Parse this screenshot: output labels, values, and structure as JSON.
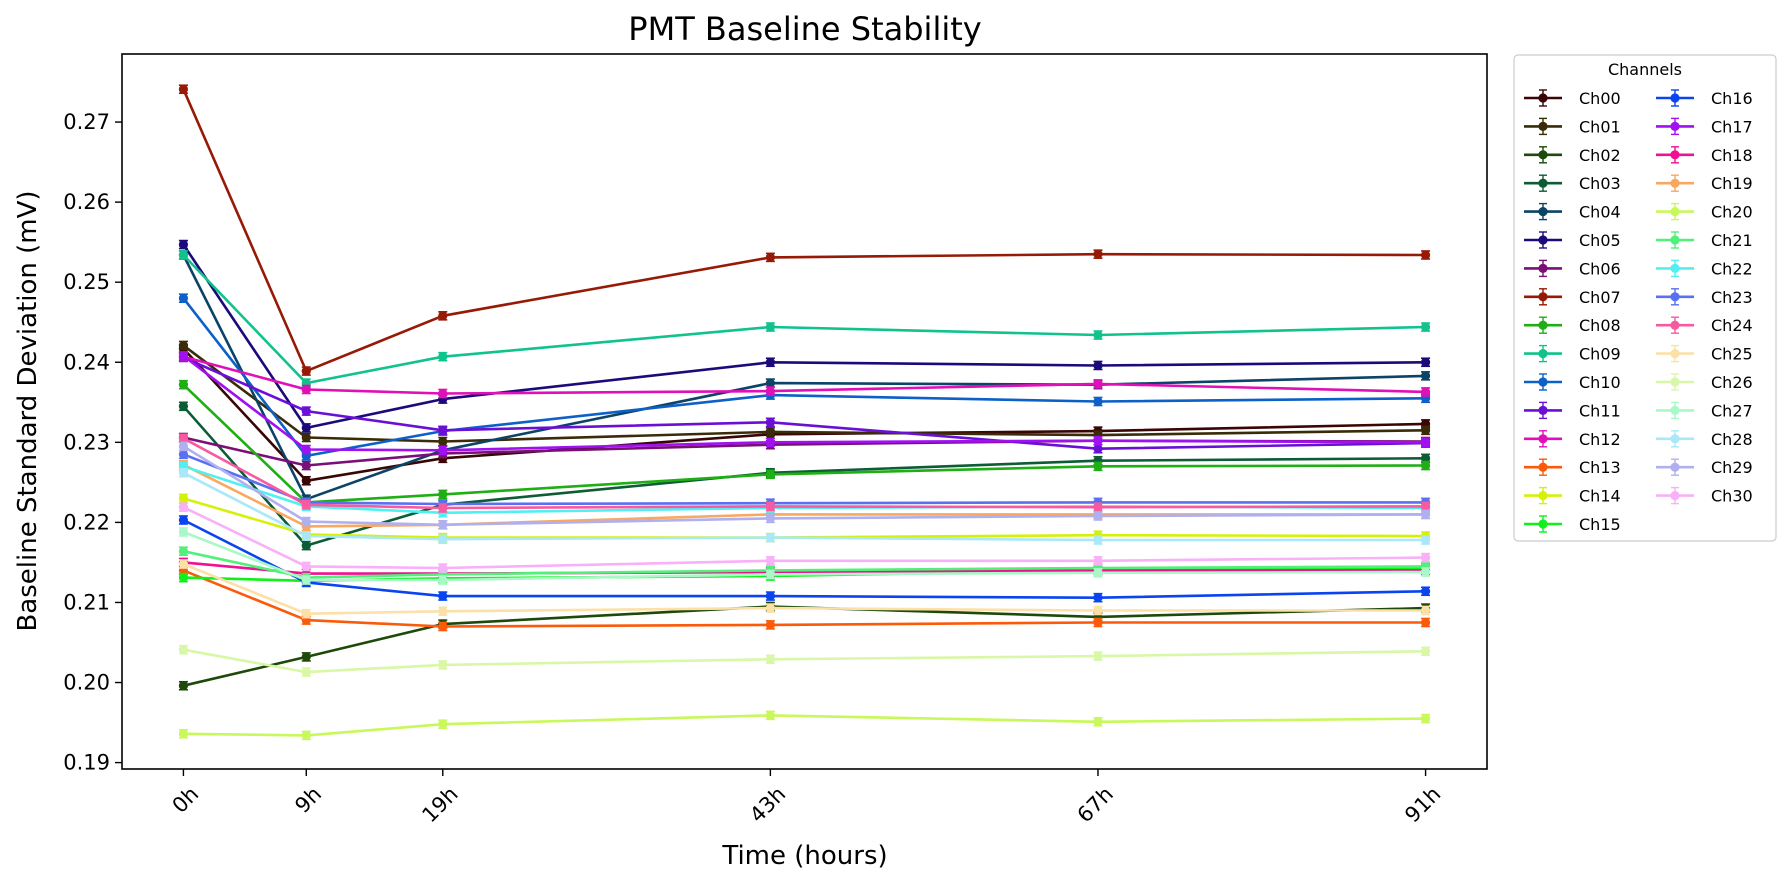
{
  "chart_data": {
    "type": "line",
    "title": "PMT Baseline Stability",
    "xlabel": "Time (hours)",
    "ylabel": "Baseline Standard Deviation (mV)",
    "x": [
      0,
      9,
      19,
      43,
      67,
      91
    ],
    "x_tick_labels": [
      "0h",
      "9h",
      "19h",
      "43h",
      "67h",
      "91h"
    ],
    "xlim": [
      -4.5,
      95.5
    ],
    "ylim": [
      0.1892,
      0.2785
    ],
    "y_ticks": [
      0.19,
      0.2,
      0.21,
      0.22,
      0.23,
      0.24,
      0.25,
      0.26,
      0.27
    ],
    "y_tick_labels": [
      "0.19",
      "0.20",
      "0.21",
      "0.22",
      "0.23",
      "0.24",
      "0.25",
      "0.26",
      "0.27"
    ],
    "grid": false,
    "legend": {
      "title": "Channels",
      "placement": "outside-top-right",
      "columns": 2
    },
    "series": [
      {
        "name": "Ch00",
        "color": "#3a0505",
        "values": [
          0.2417,
          0.2252,
          0.228,
          0.231,
          0.2314,
          0.2323
        ]
      },
      {
        "name": "Ch01",
        "color": "#3a2c08",
        "values": [
          0.2421,
          0.2306,
          0.2301,
          0.2313,
          0.2309,
          0.2315
        ]
      },
      {
        "name": "Ch02",
        "color": "#1d4a0a",
        "values": [
          0.1996,
          0.2032,
          0.2073,
          0.2095,
          0.2082,
          0.2093
        ]
      },
      {
        "name": "Ch03",
        "color": "#0c5c36",
        "values": [
          0.2345,
          0.2171,
          0.2222,
          0.2262,
          0.2277,
          0.228
        ]
      },
      {
        "name": "Ch04",
        "color": "#0b4466",
        "values": [
          0.2534,
          0.2229,
          0.229,
          0.2374,
          0.2372,
          0.2383
        ]
      },
      {
        "name": "Ch05",
        "color": "#1c0a7a",
        "values": [
          0.2547,
          0.2318,
          0.2354,
          0.24,
          0.2396,
          0.24
        ]
      },
      {
        "name": "Ch06",
        "color": "#7a1077",
        "values": [
          0.2306,
          0.2271,
          0.2286,
          0.2297,
          0.2302,
          0.2301
        ]
      },
      {
        "name": "Ch07",
        "color": "#961a06",
        "values": [
          0.2741,
          0.2389,
          0.2458,
          0.2531,
          0.2535,
          0.2534
        ]
      },
      {
        "name": "Ch08",
        "color": "#1fae14",
        "values": [
          0.2372,
          0.2225,
          0.2235,
          0.226,
          0.227,
          0.2271
        ]
      },
      {
        "name": "Ch09",
        "color": "#10c28c",
        "values": [
          0.2534,
          0.2374,
          0.2407,
          0.2444,
          0.2434,
          0.2444
        ]
      },
      {
        "name": "Ch10",
        "color": "#0c60c8",
        "values": [
          0.248,
          0.2283,
          0.2314,
          0.2359,
          0.2351,
          0.2355
        ]
      },
      {
        "name": "Ch11",
        "color": "#6a10d6",
        "values": [
          0.2406,
          0.2339,
          0.2315,
          0.2325,
          0.2292,
          0.2299
        ]
      },
      {
        "name": "Ch12",
        "color": "#e010b8",
        "values": [
          0.2407,
          0.2366,
          0.2361,
          0.2364,
          0.2373,
          0.2363
        ]
      },
      {
        "name": "Ch13",
        "color": "#fa5a0a",
        "values": [
          0.214,
          0.2078,
          0.207,
          0.2072,
          0.2075,
          0.2075
        ]
      },
      {
        "name": "Ch14",
        "color": "#d6f00a",
        "values": [
          0.223,
          0.2185,
          0.2181,
          0.2181,
          0.2184,
          0.2183
        ]
      },
      {
        "name": "Ch15",
        "color": "#10f01a",
        "values": [
          0.2131,
          0.2127,
          0.213,
          0.2133,
          0.214,
          0.2143
        ]
      },
      {
        "name": "Ch16",
        "color": "#0a44f0",
        "values": [
          0.2203,
          0.2125,
          0.2108,
          0.2108,
          0.2106,
          0.2114
        ]
      },
      {
        "name": "Ch17",
        "color": "#a010f0",
        "values": [
          0.2408,
          0.2291,
          0.229,
          0.23,
          0.2302,
          0.23
        ]
      },
      {
        "name": "Ch18",
        "color": "#f01090",
        "values": [
          0.215,
          0.2136,
          0.2136,
          0.2138,
          0.214,
          0.214
        ]
      },
      {
        "name": "Ch19",
        "color": "#f8a860",
        "values": [
          0.2272,
          0.2195,
          0.2197,
          0.221,
          0.221,
          0.221
        ]
      },
      {
        "name": "Ch20",
        "color": "#c8f85a",
        "values": [
          0.1936,
          0.1934,
          0.1948,
          0.1959,
          0.1951,
          0.1955
        ]
      },
      {
        "name": "Ch21",
        "color": "#50f07a",
        "values": [
          0.2164,
          0.2131,
          0.2135,
          0.214,
          0.2143,
          0.2145
        ]
      },
      {
        "name": "Ch22",
        "color": "#50f0f0",
        "values": [
          0.227,
          0.222,
          0.2212,
          0.2218,
          0.222,
          0.2218
        ]
      },
      {
        "name": "Ch23",
        "color": "#5a70f0",
        "values": [
          0.2285,
          0.2225,
          0.2223,
          0.2224,
          0.2225,
          0.2225
        ]
      },
      {
        "name": "Ch24",
        "color": "#f85aa0",
        "values": [
          0.2305,
          0.2222,
          0.2218,
          0.222,
          0.2219,
          0.222
        ]
      },
      {
        "name": "Ch25",
        "color": "#fce0a8",
        "values": [
          0.2148,
          0.2086,
          0.2089,
          0.2093,
          0.209,
          0.209
        ]
      },
      {
        "name": "Ch26",
        "color": "#d8f8a8",
        "values": [
          0.2041,
          0.2013,
          0.2022,
          0.2029,
          0.2033,
          0.2039
        ]
      },
      {
        "name": "Ch27",
        "color": "#a8f8c8",
        "values": [
          0.2188,
          0.2128,
          0.2128,
          0.2135,
          0.2137,
          0.2138
        ]
      },
      {
        "name": "Ch28",
        "color": "#a8e8f8",
        "values": [
          0.2262,
          0.2183,
          0.2179,
          0.2181,
          0.2178,
          0.2178
        ]
      },
      {
        "name": "Ch29",
        "color": "#b0b0f0",
        "values": [
          0.2295,
          0.2201,
          0.2197,
          0.2205,
          0.2208,
          0.221
        ]
      },
      {
        "name": "Ch30",
        "color": "#f8b0f8",
        "values": [
          0.2219,
          0.2145,
          0.2143,
          0.2152,
          0.2152,
          0.2156
        ]
      }
    ]
  }
}
